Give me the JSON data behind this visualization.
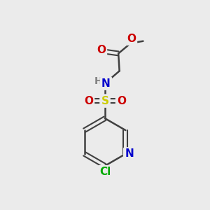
{
  "bg_color": "#ebebeb",
  "atom_colors": {
    "C": "#404040",
    "H": "#808080",
    "N": "#0000cc",
    "O": "#cc0000",
    "S": "#cccc00",
    "Cl": "#00aa00"
  },
  "bond_color": "#404040",
  "font_size": 11,
  "lw": 1.8
}
